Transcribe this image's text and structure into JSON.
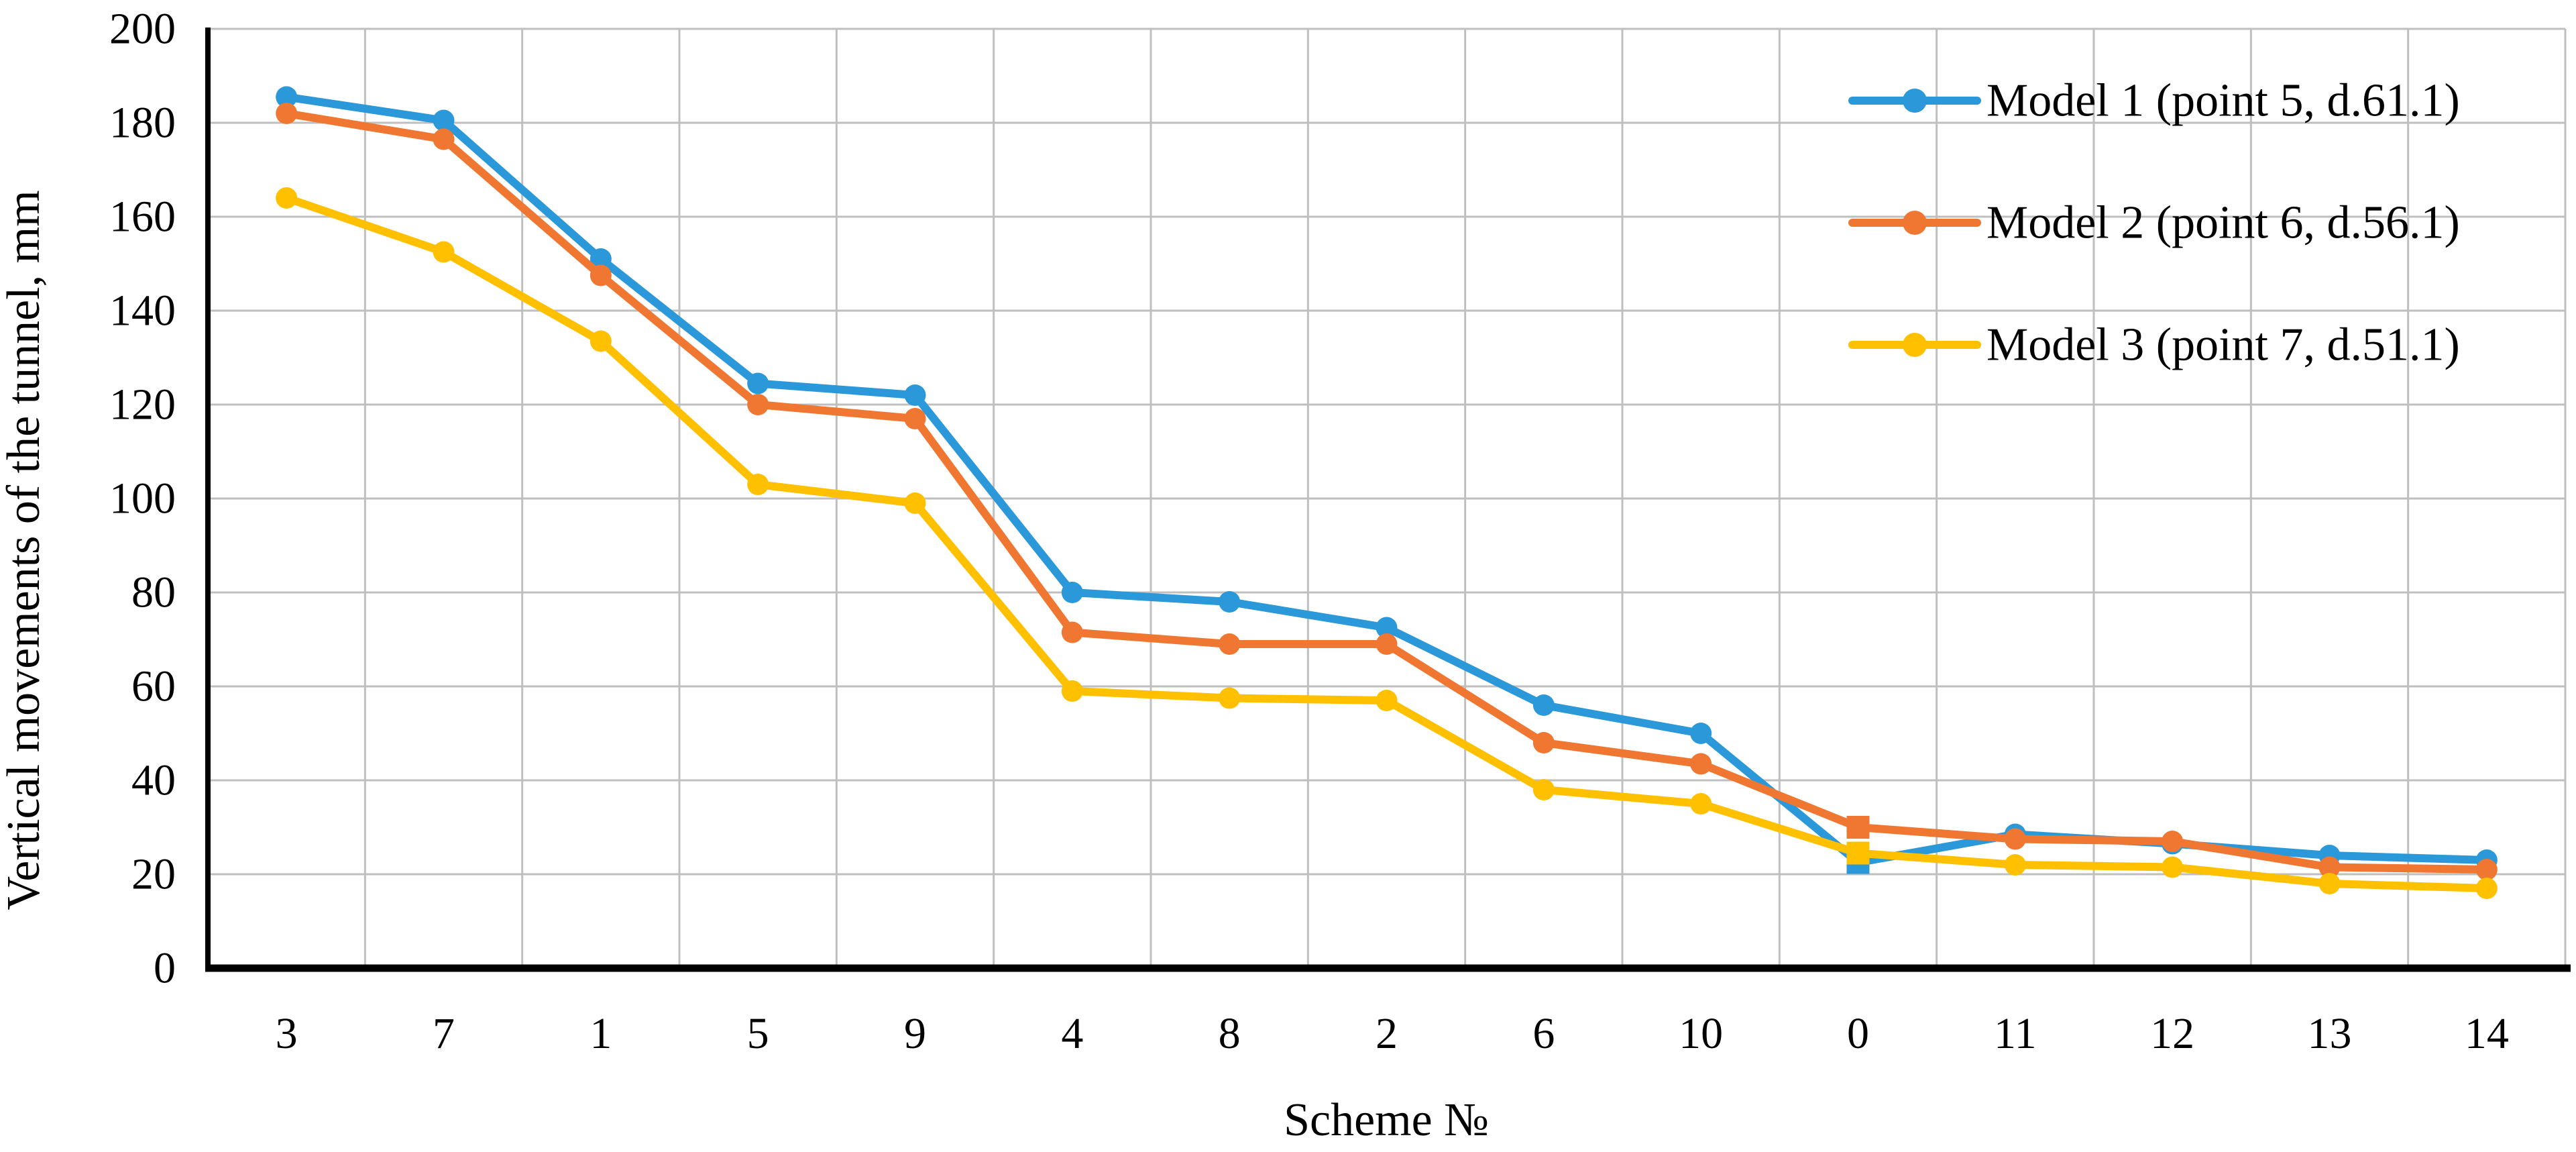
{
  "chart_data": {
    "type": "line",
    "title": "",
    "categories": [
      "3",
      "7",
      "1",
      "5",
      "9",
      "4",
      "8",
      "2",
      "6",
      "10",
      "0",
      "11",
      "12",
      "13",
      "14"
    ],
    "series": [
      {
        "name": "Model 1 (point 5, d.61.1)",
        "color": "#2B98D9",
        "marker": "circle",
        "values": [
          185.5,
          180.5,
          151,
          124.5,
          122,
          80,
          78,
          72.5,
          56,
          50,
          22.5,
          28.5,
          26.5,
          24,
          23
        ]
      },
      {
        "name": "Model  2 (point 6, d.56.1)",
        "color": "#F07732",
        "marker": "circle",
        "values": [
          182,
          176.5,
          147.5,
          120,
          117,
          71.5,
          69,
          69,
          48,
          43.5,
          30,
          27.5,
          27,
          21.5,
          21
        ]
      },
      {
        "name": "Model 3 (point 7, d.51.1)",
        "color": "#FFC000",
        "marker": "circle",
        "values": [
          164,
          152.5,
          133.5,
          103,
          99,
          59,
          57.5,
          57,
          38,
          35,
          24.5,
          22,
          21.5,
          18,
          17
        ]
      }
    ],
    "xlabel": "Scheme №",
    "ylabel": "Vertical movements of the tunnel, mm",
    "ylim": [
      0,
      200
    ],
    "ytick_step": 20,
    "grid": true,
    "legend_position": "top-right",
    "special_marker": {
      "category": "0",
      "shape": "square"
    },
    "colors": {
      "gridline": "#BFBFBF",
      "axis": "#000000",
      "text": "#000000",
      "background": "#FFFFFF"
    }
  }
}
